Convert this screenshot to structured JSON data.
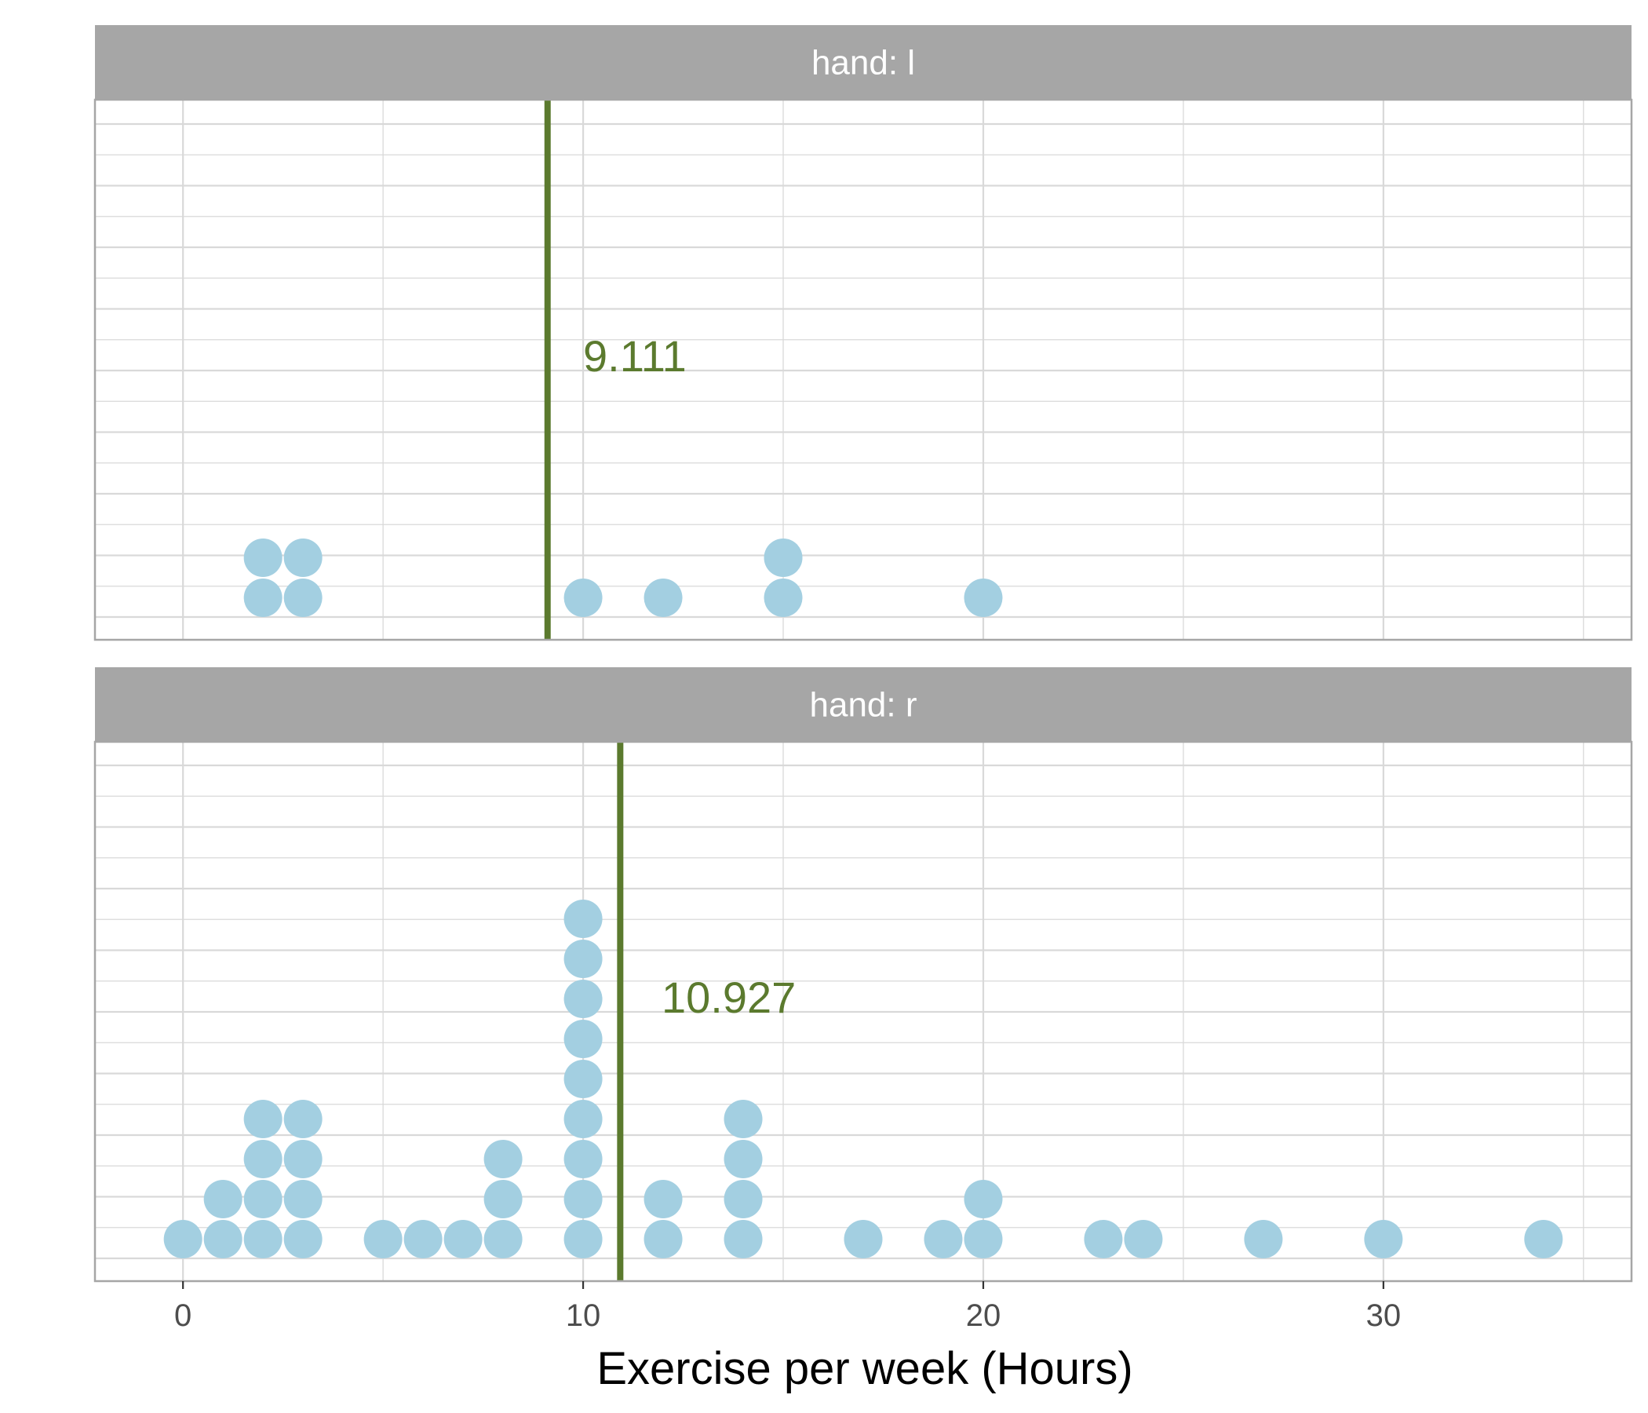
{
  "chart_data": {
    "type": "dotplot",
    "xlabel": "Exercise per week (Hours)",
    "xlim": [
      -2.2,
      36.2
    ],
    "x_ticks": [
      0,
      10,
      20,
      30
    ],
    "x_tick_labels": [
      "0",
      "10",
      "20",
      "30"
    ],
    "grid": true,
    "colors": {
      "dot": "#a3cfe1",
      "mean_line": "#5b7a2e",
      "strip": "#a6a6a6",
      "grid": "#d9d9d9",
      "border": "#a6a6a6"
    },
    "panels": [
      {
        "strip_label": "hand: l",
        "mean": 9.111,
        "mean_label": "9.111",
        "points": [
          {
            "x": 2,
            "count": 2
          },
          {
            "x": 3,
            "count": 2
          },
          {
            "x": 10,
            "count": 1
          },
          {
            "x": 12,
            "count": 1
          },
          {
            "x": 15,
            "count": 2
          },
          {
            "x": 20,
            "count": 1
          }
        ]
      },
      {
        "strip_label": "hand: r",
        "mean": 10.927,
        "mean_label": "10.927",
        "points": [
          {
            "x": 0,
            "count": 1
          },
          {
            "x": 1,
            "count": 2
          },
          {
            "x": 2,
            "count": 4
          },
          {
            "x": 3,
            "count": 4
          },
          {
            "x": 5,
            "count": 1
          },
          {
            "x": 6,
            "count": 1
          },
          {
            "x": 7,
            "count": 1
          },
          {
            "x": 8,
            "count": 3
          },
          {
            "x": 10,
            "count": 9
          },
          {
            "x": 12,
            "count": 2
          },
          {
            "x": 14,
            "count": 4
          },
          {
            "x": 17,
            "count": 1
          },
          {
            "x": 19,
            "count": 1
          },
          {
            "x": 20,
            "count": 2
          },
          {
            "x": 23,
            "count": 1
          },
          {
            "x": 24,
            "count": 1
          },
          {
            "x": 27,
            "count": 1
          },
          {
            "x": 30,
            "count": 1
          },
          {
            "x": 34,
            "count": 1
          }
        ]
      }
    ]
  }
}
